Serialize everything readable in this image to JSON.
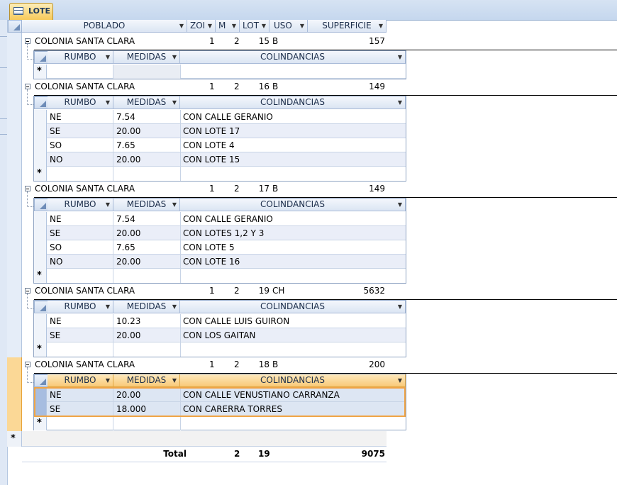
{
  "tab": {
    "label": "LOTE"
  },
  "main_headers": {
    "poblado": "POBLADO",
    "zona": "ZOI",
    "m": "M",
    "lote": "LOT",
    "uso": "USO",
    "superficie": "SUPERFICIE"
  },
  "sub_headers": {
    "rumbo": "RUMBO",
    "medidas": "MEDIDAS",
    "colindancias": "COLINDANCIAS"
  },
  "new_row_marker": "*",
  "records": [
    {
      "poblado": "COLONIA SANTA CLARA",
      "zona": "1",
      "m": "2",
      "lote": "15",
      "uso": "B",
      "superficie": "157",
      "sub": []
    },
    {
      "poblado": "COLONIA SANTA CLARA",
      "zona": "1",
      "m": "2",
      "lote": "16",
      "uso": "B",
      "superficie": "149",
      "sub": [
        {
          "rumbo": "NE",
          "medidas": "7.54",
          "colindancias": "CON CALLE GERANIO"
        },
        {
          "rumbo": "SE",
          "medidas": "20.00",
          "colindancias": "CON LOTE 17"
        },
        {
          "rumbo": "SO",
          "medidas": "7.65",
          "colindancias": "CON LOTE 4"
        },
        {
          "rumbo": "NO",
          "medidas": "20.00",
          "colindancias": "CON LOTE 15"
        }
      ]
    },
    {
      "poblado": "COLONIA SANTA CLARA",
      "zona": "1",
      "m": "2",
      "lote": "17",
      "uso": "B",
      "superficie": "149",
      "sub": [
        {
          "rumbo": "NE",
          "medidas": "7.54",
          "colindancias": "CON CALLE GERANIO"
        },
        {
          "rumbo": "SE",
          "medidas": "20.00",
          "colindancias": "CON LOTES 1,2 Y 3"
        },
        {
          "rumbo": "SO",
          "medidas": "7.65",
          "colindancias": "CON LOTE 5"
        },
        {
          "rumbo": "NO",
          "medidas": "20.00",
          "colindancias": "CON LOTE 16"
        }
      ]
    },
    {
      "poblado": "COLONIA SANTA CLARA",
      "zona": "1",
      "m": "2",
      "lote": "19",
      "uso": "CH",
      "superficie": "5632",
      "sub": [
        {
          "rumbo": "NE",
          "medidas": "10.23",
          "colindancias": "CON CALLE LUIS GUIRON"
        },
        {
          "rumbo": "SE",
          "medidas": "20.00",
          "colindancias": "CON LOS GAITAN"
        }
      ]
    },
    {
      "poblado": "COLONIA SANTA CLARA",
      "zona": "1",
      "m": "2",
      "lote": "18",
      "uso": "B",
      "superficie": "200",
      "sub": [
        {
          "rumbo": "NE",
          "medidas": "20.00",
          "colindancias": "CON CALLE VENUSTIANO CARRANZA"
        },
        {
          "rumbo": "SE",
          "medidas": "18.000",
          "colindancias": "CON CARERRA TORRES"
        }
      ]
    }
  ],
  "totals": {
    "label": "Total",
    "m": "2",
    "lote": "19",
    "superficie": "9075"
  }
}
